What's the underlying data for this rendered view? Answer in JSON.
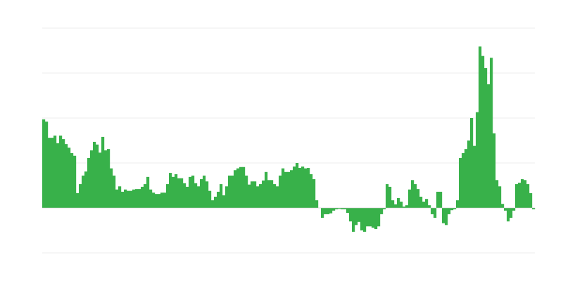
{
  "chart_data": {
    "type": "bar",
    "title": "",
    "xlabel": "",
    "ylabel": "",
    "ylim": [
      -1,
      4
    ],
    "yticks": [
      -1,
      0,
      1,
      2,
      3,
      4
    ],
    "grid": true,
    "legend": "none",
    "colors": {
      "bar": "#38b14a",
      "grid": "#eeeeee",
      "zero_line": "#cccccc"
    },
    "values": [
      1.97,
      1.92,
      1.56,
      1.56,
      1.61,
      1.44,
      1.61,
      1.53,
      1.42,
      1.34,
      1.22,
      1.16,
      0.33,
      0.53,
      0.72,
      0.81,
      1.11,
      1.28,
      1.47,
      1.41,
      1.23,
      1.58,
      1.28,
      1.31,
      0.88,
      0.72,
      0.41,
      0.48,
      0.36,
      0.41,
      0.38,
      0.38,
      0.41,
      0.42,
      0.42,
      0.47,
      0.53,
      0.69,
      0.41,
      0.34,
      0.31,
      0.31,
      0.34,
      0.34,
      0.53,
      0.78,
      0.69,
      0.75,
      0.66,
      0.66,
      0.55,
      0.47,
      0.69,
      0.72,
      0.55,
      0.48,
      0.64,
      0.72,
      0.59,
      0.38,
      0.17,
      0.25,
      0.36,
      0.53,
      0.28,
      0.48,
      0.72,
      0.72,
      0.84,
      0.88,
      0.91,
      0.91,
      0.72,
      0.52,
      0.59,
      0.59,
      0.48,
      0.53,
      0.61,
      0.8,
      0.62,
      0.62,
      0.53,
      0.48,
      0.72,
      0.88,
      0.8,
      0.8,
      0.84,
      0.92,
      1.0,
      0.89,
      0.92,
      0.88,
      0.89,
      0.75,
      0.64,
      0.17,
      0,
      -0.22,
      -0.14,
      -0.14,
      -0.12,
      -0.06,
      -0.03,
      -0.02,
      -0.03,
      -0.03,
      -0.11,
      -0.3,
      -0.53,
      -0.38,
      -0.31,
      -0.5,
      -0.53,
      -0.41,
      -0.41,
      -0.44,
      -0.47,
      -0.41,
      -0.14,
      -0.03,
      0.53,
      0.47,
      0.17,
      0.08,
      0.22,
      0.14,
      0.03,
      0.06,
      0.41,
      0.62,
      0.53,
      0.42,
      0.25,
      0.14,
      0.2,
      0.06,
      -0.14,
      -0.22,
      0.36,
      0.36,
      -0.34,
      -0.38,
      -0.14,
      -0.05,
      -0.03,
      0.17,
      1.11,
      1.22,
      1.31,
      1.5,
      2.0,
      1.38,
      2.13,
      3.59,
      3.38,
      3.11,
      2.75,
      3.34,
      1.66,
      0.62,
      0.48,
      0.09,
      -0.06,
      -0.3,
      -0.22,
      -0.06,
      0.53,
      0.56,
      0.64,
      0.62,
      0.53,
      0.33,
      -0.03
    ]
  }
}
